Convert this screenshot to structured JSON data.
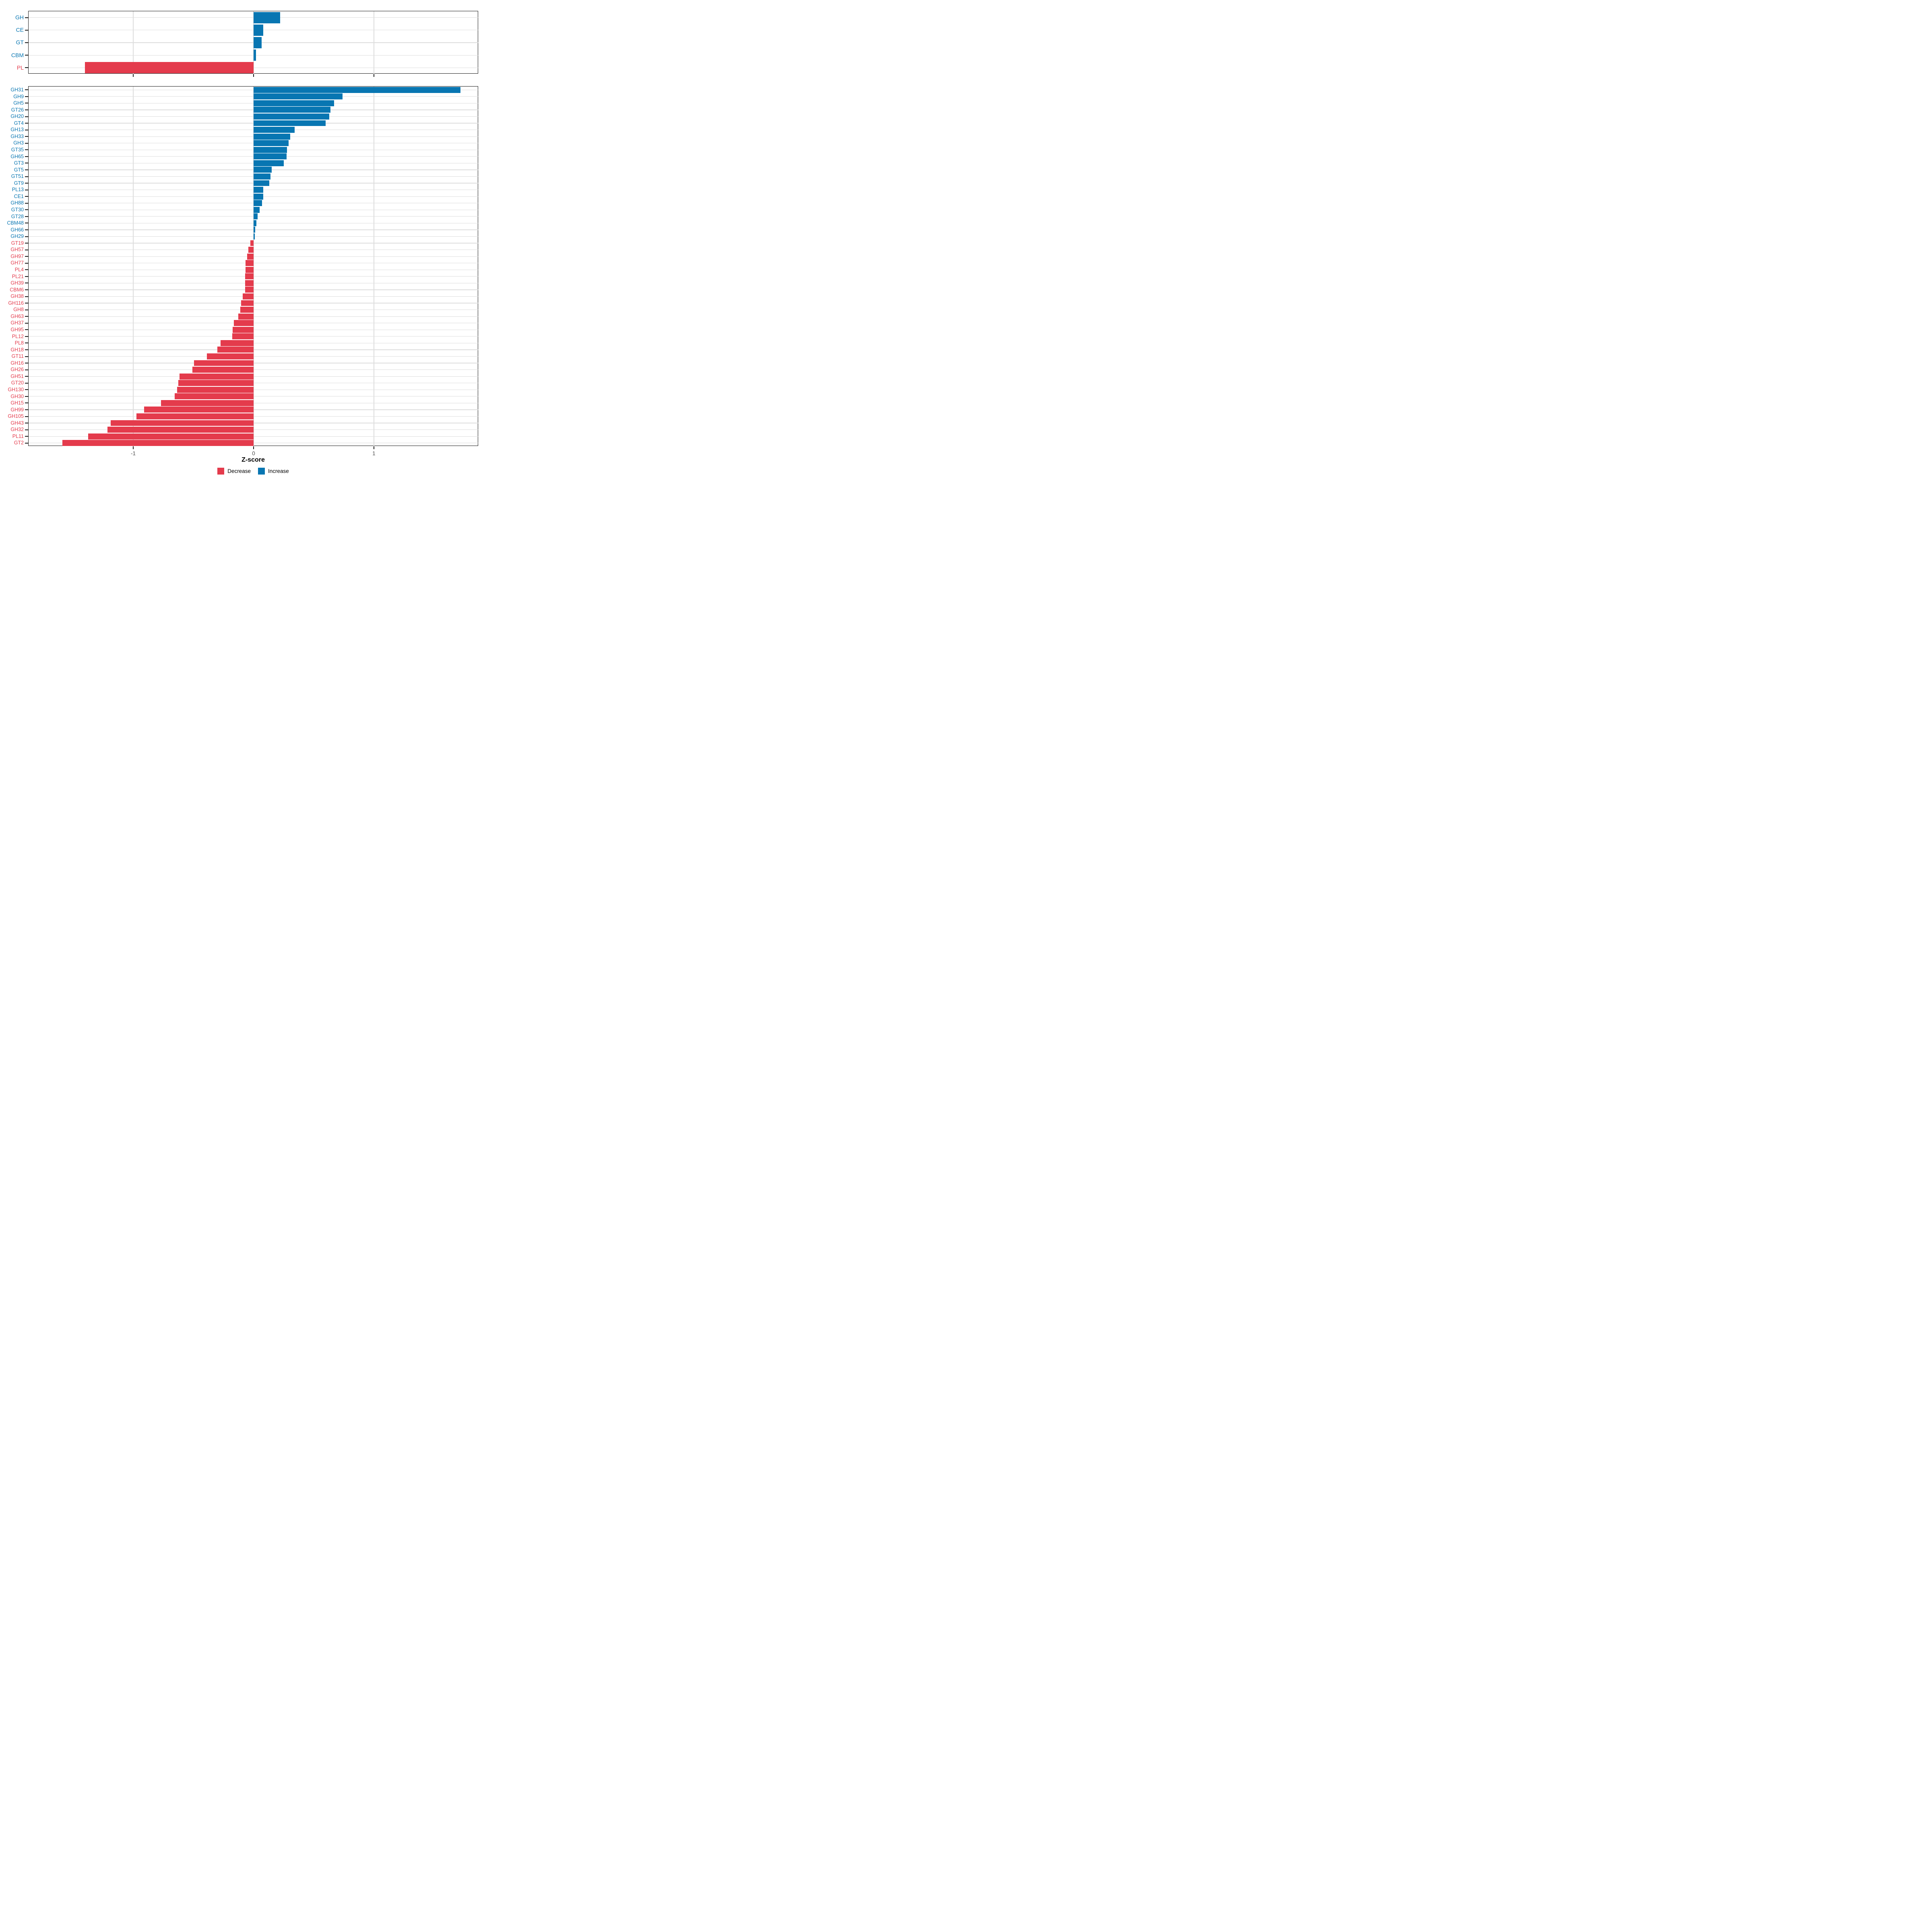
{
  "chart_data": {
    "type": "bar",
    "orientation": "horizontal",
    "title": "",
    "xlabel": "Z-score",
    "ylabel": "",
    "xlim": [
      -1.87,
      1.87
    ],
    "xticks": [
      -1,
      0,
      1
    ],
    "xtick_labels": [
      "-1",
      "0",
      "1"
    ],
    "grid": "major-only",
    "legend_position": "bottom-center",
    "colors": {
      "increase": "#0876B2",
      "decrease": "#E43B4C",
      "gridline": "#dddddd",
      "panel_border": "#1a1a1a",
      "axis_tick_text": "#4d4d4d",
      "axis_title_text": "#000000"
    },
    "legend": [
      {
        "label": "Decrease",
        "color": "#E43B4C"
      },
      {
        "label": "Increase",
        "color": "#0876B2"
      }
    ],
    "panels": [
      {
        "name": "cazyme-class-panel",
        "categories": [
          "GH",
          "CE",
          "GT",
          "CBM",
          "PL"
        ],
        "values": [
          0.22,
          0.08,
          0.066,
          0.02,
          -1.4
        ]
      },
      {
        "name": "cazyme-family-panel",
        "categories": [
          "GH31",
          "GH9",
          "GH5",
          "GT26",
          "GH20",
          "GT4",
          "GH13",
          "GH33",
          "GH3",
          "GT35",
          "GH65",
          "GT3",
          "GT5",
          "GT51",
          "GT9",
          "PL13",
          "CE1",
          "GH88",
          "GT30",
          "GT28",
          "CBM48",
          "GH66",
          "GH29",
          "GT19",
          "GH57",
          "GH97",
          "GH77",
          "PL4",
          "PL21",
          "GH39",
          "CBM6",
          "GH38",
          "GH116",
          "GH8",
          "GH63",
          "GH37",
          "GH95",
          "PL12",
          "PL8",
          "GH18",
          "GT11",
          "GH16",
          "GH26",
          "GH51",
          "GT20",
          "GH130",
          "GH30",
          "GH15",
          "GH99",
          "GH105",
          "GH43",
          "GH32",
          "PL11",
          "GT2"
        ],
        "values": [
          1.72,
          0.74,
          0.67,
          0.64,
          0.63,
          0.6,
          0.34,
          0.305,
          0.29,
          0.277,
          0.275,
          0.25,
          0.15,
          0.14,
          0.13,
          0.08,
          0.079,
          0.071,
          0.049,
          0.035,
          0.024,
          0.013,
          0.011,
          -0.027,
          -0.043,
          -0.052,
          -0.068,
          -0.068,
          -0.069,
          -0.07,
          -0.071,
          -0.089,
          -0.105,
          -0.111,
          -0.128,
          -0.165,
          -0.173,
          -0.178,
          -0.275,
          -0.302,
          -0.389,
          -0.496,
          -0.508,
          -0.616,
          -0.625,
          -0.636,
          -0.656,
          -0.771,
          -0.91,
          -0.974,
          -1.186,
          -1.213,
          -1.375,
          -1.59
        ]
      }
    ]
  }
}
